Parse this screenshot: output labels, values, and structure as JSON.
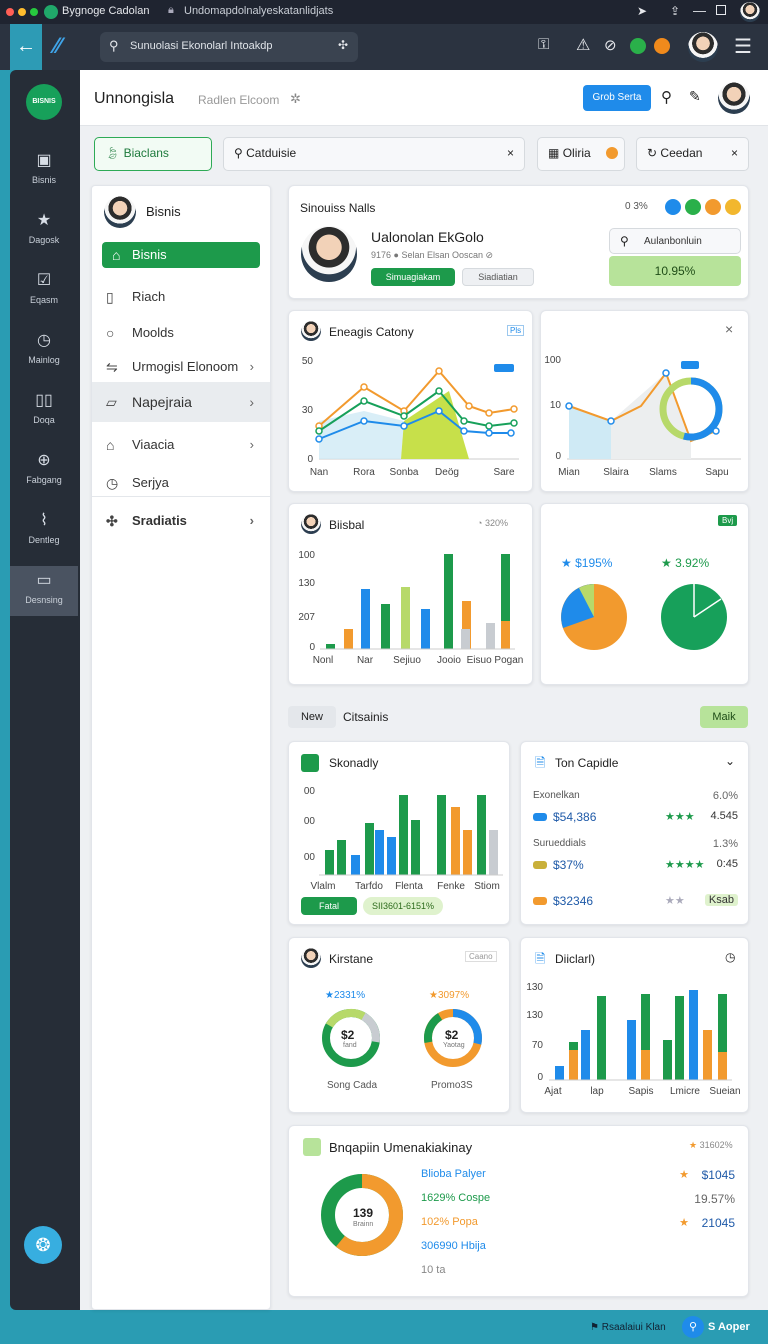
{
  "browser": {
    "tab_title": "Bygnoge Cadolan",
    "url": "Undomapdolnalyeskatanlidjats",
    "omnibox": "Sunuolasi Ekonolarl Intoakdp"
  },
  "header": {
    "title": "Unnongisla",
    "subtitle": "Radlen Elcoom",
    "primary_button": "Grob Serta"
  },
  "rail": [
    {
      "label": "Bisnis",
      "icon": "grid-icon"
    },
    {
      "label": "Dagosk",
      "icon": "star-icon"
    },
    {
      "label": "Eqasm",
      "icon": "chart-icon"
    },
    {
      "label": "Mainlog",
      "icon": "clock-icon"
    },
    {
      "label": "Doqa",
      "icon": "columns-icon"
    },
    {
      "label": "Fabgang",
      "icon": "globe-icon"
    },
    {
      "label": "Dentleg",
      "icon": "stats-icon"
    },
    {
      "label": "Desnsing",
      "icon": "screen-icon"
    }
  ],
  "filters": {
    "primary": "Biaclans",
    "search": "Catduisie",
    "chip1": "Oliria",
    "chip2": "Ceedan"
  },
  "sidebar": {
    "profile": "Bisnis",
    "items": [
      {
        "label": "Bisnis"
      },
      {
        "label": "Riach"
      },
      {
        "label": "Moolds"
      },
      {
        "label": "Urmogisl Elonoom"
      },
      {
        "label": "Napejraia"
      },
      {
        "label": "Viaacia"
      },
      {
        "label": "Serjya"
      },
      {
        "label": "Sradiatis"
      }
    ]
  },
  "profile_card": {
    "title": "Sinouiss Nalls",
    "name": "Ualonolan EkGolo",
    "meta": "9176 ● Selan Elsan Ooscan ⊘",
    "tag1": "Simuagiakam",
    "tag2": "Siadiatian",
    "badge": "0 3%",
    "search": "Aulanbonluin",
    "value": "10.95%"
  },
  "line_card": {
    "title": "Eneagis Catony",
    "badge": "Pls",
    "ylabels": [
      "50",
      "30",
      "0"
    ],
    "xlabels": [
      "Nan",
      "Rora",
      "Sonba",
      "Deög",
      "Sare"
    ]
  },
  "donut_line_card": {
    "ylabels": [
      "100",
      "10",
      "0"
    ],
    "xlabels": [
      "Mian",
      "Slaira",
      "Slams",
      "Sapu"
    ]
  },
  "bar_card": {
    "title": "Biisbal",
    "badge": "320%",
    "ylabels": [
      "100",
      "130",
      "207",
      "0"
    ],
    "xlabels": [
      "Nonl",
      "Nar",
      "Sejiuo",
      "Jooio",
      "Eisuo Pogan"
    ]
  },
  "pies": {
    "badge": "Bvj",
    "pie1_label": "$195%",
    "pie2_label": "3.92%"
  },
  "section": {
    "tab": "New",
    "title": "Citsainis",
    "action": "Maik"
  },
  "sk_card": {
    "title": "Skonadly",
    "ylabels": [
      "00",
      "00",
      "00"
    ],
    "xlabels": [
      "Vlalm",
      "Tarfdo",
      "Flenta",
      "Fenke",
      "Stiom"
    ],
    "chip1": "Fatal",
    "chip2": "SII3601-6151%"
  },
  "top_card": {
    "title": "Ton Capidle",
    "rows": [
      {
        "label": "Exonelkan",
        "pct": "6.0%",
        "value": "$54,386",
        "stars": "★★★",
        "score": "4.545"
      },
      {
        "label": "Surueddials",
        "pct": "1.3%",
        "value": "$37%",
        "stars": "★★★★",
        "score": "0:45"
      },
      {
        "label": "",
        "pct": "",
        "value": "$32346",
        "stars": "★★",
        "score": "Ksab"
      }
    ]
  },
  "kr_card": {
    "title": "Kirstane",
    "badge": "Caano",
    "donut1_top": "2331%",
    "donut1_val": "$2",
    "donut1_sub": "fand",
    "donut1_label": "Song Cada",
    "donut2_top": "3097%",
    "donut2_val": "$2",
    "donut2_sub": "Yaotag",
    "donut2_label": "Promo3S"
  },
  "di_card": {
    "title": "Diiclarl)",
    "ylabels": [
      "130",
      "130",
      "70",
      "0"
    ],
    "xlabels": [
      "Ajat",
      "lap",
      "Sapis",
      "Lmicre",
      "Sueian"
    ]
  },
  "bottom_card": {
    "title": "Bnqapiin Umenakiakinay",
    "badge": "31602%",
    "donut_val": "139",
    "donut_sub": "Brainn",
    "rows": [
      {
        "label": "Blioba Palyer",
        "value": "$1045"
      },
      {
        "label": "1629% Cospe",
        "value": "19.57%"
      },
      {
        "label": "102% Popa",
        "value": "21045"
      },
      {
        "label": "306990 Hbija",
        "value": ""
      },
      {
        "label": "10 ta",
        "value": ""
      }
    ]
  },
  "footer": {
    "left": "Rsaalaiui Klan",
    "right": "S Aoper"
  }
}
